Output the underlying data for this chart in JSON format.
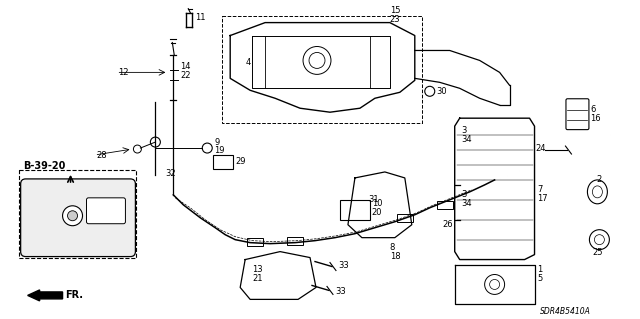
{
  "background_color": "#ffffff",
  "diagram_code": "SDR4B5410A",
  "line_color": "#000000",
  "text_color": "#000000",
  "figsize": [
    6.4,
    3.19
  ],
  "dpi": 100
}
